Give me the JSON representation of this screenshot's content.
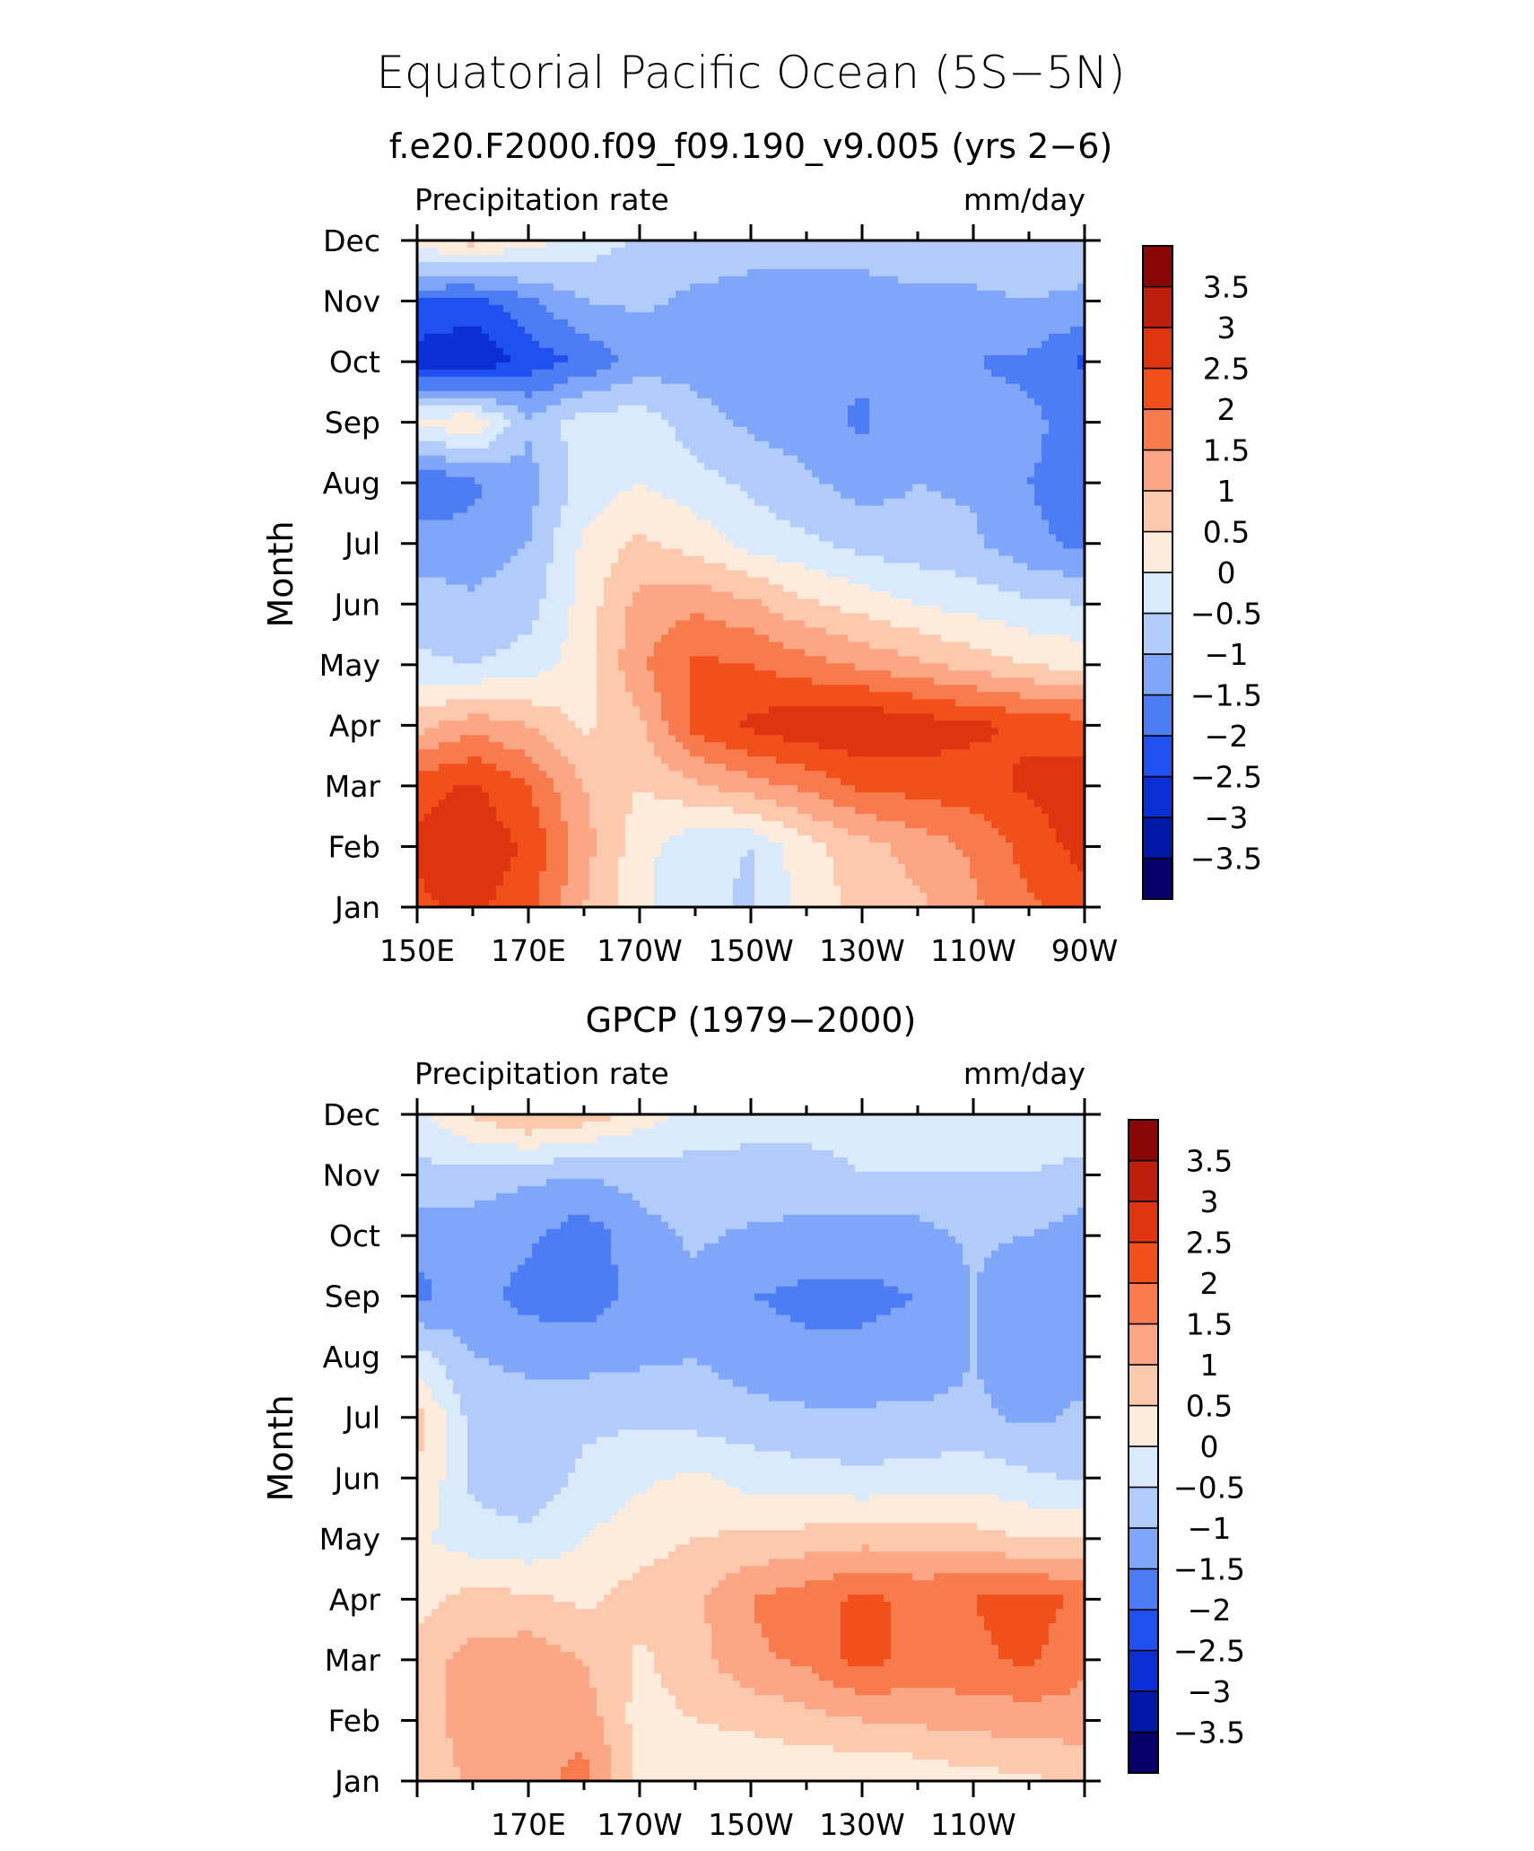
{
  "figure": {
    "title": "Equatorial Pacific Ocean (5S−5N)"
  },
  "chart_data": [
    {
      "type": "heatmap",
      "subtitle": "f.e20.F2000.f09_f09.190_v9.005 (yrs 2−6)",
      "left_label": "Precipitation rate",
      "right_label": "mm/day",
      "ylabel": "Month",
      "xlabel": "",
      "x_range_deg_east": [
        150,
        270
      ],
      "x_ticks": [
        {
          "value": 150,
          "label": "150E"
        },
        {
          "value": 170,
          "label": "170E"
        },
        {
          "value": 190,
          "label": "170W"
        },
        {
          "value": 210,
          "label": "150W"
        },
        {
          "value": 230,
          "label": "130W"
        },
        {
          "value": 250,
          "label": "110W"
        },
        {
          "value": 270,
          "label": "90W"
        }
      ],
      "y_ticks": [
        "Jan",
        "Feb",
        "Mar",
        "Apr",
        "May",
        "Jun",
        "Jul",
        "Aug",
        "Sep",
        "Oct",
        "Nov",
        "Dec"
      ],
      "levels": [
        -3.5,
        -3,
        -2.5,
        -2,
        -1.5,
        -1,
        -0.5,
        0,
        0.5,
        1,
        1.5,
        2,
        2.5,
        3,
        3.5
      ],
      "colorbar_labels": [
        "3.5",
        "3",
        "2.5",
        "2",
        "1.5",
        "1",
        "0.5",
        "0",
        "−0.5",
        "−1",
        "−1.5",
        "−2",
        "−2.5",
        "−3",
        "−3.5"
      ],
      "colors": [
        "#08006a",
        "#0019a6",
        "#0b2fd6",
        "#2150f0",
        "#4d7df5",
        "#7fa6f9",
        "#b1ccfa",
        "#dbe9fc",
        "#fdebdc",
        "#fdc9ae",
        "#fba685",
        "#f77b4c",
        "#f1501b",
        "#de3410",
        "#bd1f0c",
        "#8a0708"
      ],
      "x": [
        150,
        160,
        170,
        180,
        190,
        200,
        210,
        220,
        230,
        240,
        250,
        260,
        270
      ],
      "z_months_jan_to_dec": [
        [
          2.4,
          2.6,
          2.2,
          1.0,
          0.1,
          -0.3,
          -0.6,
          0.3,
          0.6,
          0.9,
          1.4,
          1.9,
          2.3
        ],
        [
          2.6,
          2.9,
          2.4,
          1.2,
          0.2,
          -0.4,
          -0.5,
          0.3,
          0.8,
          1.2,
          1.6,
          2.2,
          2.7
        ],
        [
          2.3,
          2.6,
          2.0,
          1.0,
          0.5,
          0.9,
          1.3,
          1.6,
          2.1,
          2.2,
          2.3,
          2.6,
          2.8
        ],
        [
          0.8,
          1.3,
          1.0,
          0.4,
          0.9,
          2.2,
          2.6,
          2.9,
          3.0,
          2.8,
          2.6,
          2.4,
          2.2
        ],
        [
          -0.4,
          -0.5,
          -0.3,
          0.3,
          1.4,
          2.1,
          2.0,
          1.7,
          1.4,
          1.1,
          0.8,
          0.5,
          0.3
        ],
        [
          -0.8,
          -0.9,
          -0.7,
          0.2,
          1.2,
          1.4,
          1.1,
          0.6,
          0.3,
          0.0,
          -0.2,
          -0.4,
          -0.5
        ],
        [
          -1.2,
          -1.3,
          -1.0,
          0.1,
          0.6,
          0.3,
          -0.2,
          -0.4,
          -0.7,
          -0.8,
          -0.9,
          -1.4,
          -1.6
        ],
        [
          -2.1,
          -1.6,
          -1.2,
          -0.3,
          0.0,
          -0.3,
          -0.6,
          -0.9,
          -1.2,
          -1.0,
          -1.1,
          -1.5,
          -1.7
        ],
        [
          0.2,
          0.4,
          -0.9,
          -0.2,
          -0.2,
          -0.8,
          -1.1,
          -1.3,
          -1.6,
          -1.1,
          -1.3,
          -1.4,
          -1.7
        ],
        [
          -2.8,
          -3.0,
          -2.3,
          -1.9,
          -1.3,
          -1.2,
          -1.3,
          -1.4,
          -1.4,
          -1.4,
          -1.5,
          -1.6,
          -2.1
        ],
        [
          -2.0,
          -2.2,
          -1.6,
          -1.0,
          -0.9,
          -1.1,
          -1.2,
          -1.2,
          -1.2,
          -1.1,
          -1.1,
          -1.0,
          -1.1
        ],
        [
          0.3,
          0.7,
          0.2,
          -0.2,
          -0.6,
          -0.7,
          -0.8,
          -0.8,
          -0.8,
          -0.7,
          -0.7,
          -0.7,
          -0.7
        ]
      ]
    },
    {
      "type": "heatmap",
      "subtitle": "GPCP (1979−2000)",
      "left_label": "Precipitation rate",
      "right_label": "mm/day",
      "ylabel": "Month",
      "xlabel": "",
      "x_range_deg_east": [
        150,
        270
      ],
      "x_ticks": [
        {
          "value": 170,
          "label": "170E"
        },
        {
          "value": 190,
          "label": "170W"
        },
        {
          "value": 210,
          "label": "150W"
        },
        {
          "value": 230,
          "label": "130W"
        },
        {
          "value": 250,
          "label": "110W"
        }
      ],
      "y_ticks": [
        "Jan",
        "Feb",
        "Mar",
        "Apr",
        "May",
        "Jun",
        "Jul",
        "Aug",
        "Sep",
        "Oct",
        "Nov",
        "Dec"
      ],
      "levels": [
        -3.5,
        -3,
        -2.5,
        -2,
        -1.5,
        -1,
        -0.5,
        0,
        0.5,
        1,
        1.5,
        2,
        2.5,
        3,
        3.5
      ],
      "colorbar_labels": [
        "3.5",
        "3",
        "2.5",
        "2",
        "1.5",
        "1",
        "0.5",
        "0",
        "−0.5",
        "−1",
        "−1.5",
        "−2",
        "−2.5",
        "−3",
        "−3.5"
      ],
      "colors": [
        "#08006a",
        "#0019a6",
        "#0b2fd6",
        "#2150f0",
        "#4d7df5",
        "#7fa6f9",
        "#b1ccfa",
        "#dbe9fc",
        "#fdebdc",
        "#fdc9ae",
        "#fba685",
        "#f77b4c",
        "#f1501b",
        "#de3410",
        "#bd1f0c",
        "#8a0708"
      ],
      "x": [
        150,
        160,
        170,
        180,
        190,
        200,
        210,
        220,
        230,
        240,
        250,
        260,
        270
      ],
      "z_months_jan_to_dec": [
        [
          0.6,
          1.1,
          1.3,
          1.7,
          0.4,
          0.2,
          0.1,
          0.1,
          0.0,
          0.1,
          0.3,
          0.4,
          0.6
        ],
        [
          0.7,
          1.3,
          1.4,
          1.3,
          0.3,
          0.5,
          0.6,
          0.8,
          1.0,
          1.1,
          1.2,
          1.2,
          1.3
        ],
        [
          0.8,
          1.2,
          1.3,
          1.0,
          0.4,
          0.8,
          1.4,
          1.6,
          2.2,
          1.8,
          1.9,
          2.1,
          1.6
        ],
        [
          0.3,
          0.7,
          0.6,
          0.4,
          0.7,
          0.9,
          1.5,
          1.8,
          2.1,
          1.9,
          2.0,
          2.2,
          1.9
        ],
        [
          0.1,
          -0.3,
          -0.4,
          0.0,
          0.3,
          0.5,
          0.6,
          0.7,
          0.8,
          0.8,
          0.7,
          0.5,
          0.5
        ],
        [
          0.5,
          -0.6,
          -0.8,
          -0.4,
          -0.1,
          0.1,
          -0.2,
          -0.3,
          -0.4,
          -0.3,
          -0.2,
          -0.4,
          -0.6
        ],
        [
          0.7,
          -0.7,
          -0.8,
          -0.6,
          -0.6,
          -0.7,
          -0.8,
          -0.9,
          -0.9,
          -0.9,
          -0.9,
          -1.1,
          -0.9
        ],
        [
          -0.3,
          -1.0,
          -1.1,
          -1.2,
          -1.1,
          -1.0,
          -1.3,
          -1.4,
          -1.4,
          -1.3,
          -1.0,
          -1.3,
          -1.2
        ],
        [
          -1.6,
          -1.3,
          -1.7,
          -1.8,
          -1.3,
          -1.2,
          -1.5,
          -1.6,
          -1.6,
          -1.5,
          -1.0,
          -1.5,
          -1.4
        ],
        [
          -1.4,
          -1.2,
          -1.4,
          -1.8,
          -1.2,
          -0.9,
          -1.1,
          -1.2,
          -1.3,
          -1.2,
          -0.9,
          -1.0,
          -1.3
        ],
        [
          -0.6,
          -0.8,
          -0.9,
          -1.0,
          -0.8,
          -0.7,
          -0.6,
          -0.6,
          -0.5,
          -0.5,
          -0.5,
          -0.5,
          -0.6
        ],
        [
          -0.2,
          0.6,
          1.1,
          0.8,
          0.3,
          -0.2,
          -0.4,
          -0.4,
          -0.4,
          -0.3,
          -0.3,
          -0.3,
          -0.3
        ]
      ]
    }
  ]
}
